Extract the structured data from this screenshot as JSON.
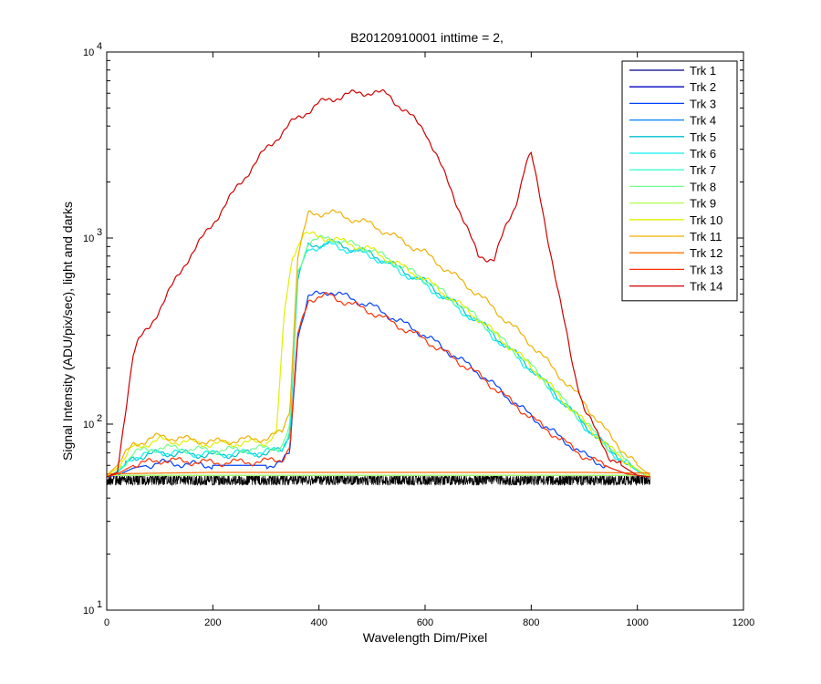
{
  "chart_data": {
    "type": "line",
    "title": "B20120910001 inttime = 2,",
    "xlabel": "Wavelength Dim/Pixel",
    "ylabel": "Signal Intensity (ADU/pix/sec), light and darks",
    "xlim": [
      0,
      1200
    ],
    "ylim": [
      10,
      10000
    ],
    "yscale": "log",
    "x_ticks": [
      "0",
      "200",
      "400",
      "600",
      "800",
      "1000",
      "1200"
    ],
    "y_ticks": [
      {
        "base": "10",
        "exp": "1"
      },
      {
        "base": "10",
        "exp": "2"
      },
      {
        "base": "10",
        "exp": "3"
      },
      {
        "base": "10",
        "exp": "4"
      }
    ],
    "grid": false,
    "legend_position": "top-right",
    "dark_band": {
      "x": [
        0,
        1024
      ],
      "y_low": 47,
      "y_high": 53,
      "color": "#000000"
    },
    "series": [
      {
        "name": "Trk 1",
        "color": "#00008f",
        "x": [
          0,
          200,
          400,
          600,
          800,
          1024
        ],
        "y": [
          53,
          53,
          53,
          53,
          53,
          53
        ]
      },
      {
        "name": "Trk 2",
        "color": "#0000bf",
        "x": [
          0,
          200,
          400,
          600,
          800,
          1024
        ],
        "y": [
          53,
          53,
          53,
          53,
          53,
          53
        ]
      },
      {
        "name": "Trk 3",
        "color": "#0040ff",
        "x": [
          0,
          20,
          50,
          100,
          200,
          300,
          330,
          345,
          360,
          380,
          420,
          500,
          600,
          700,
          800,
          900,
          950,
          980,
          1024
        ],
        "y": [
          52,
          53,
          58,
          62,
          60,
          60,
          62,
          70,
          300,
          480,
          520,
          430,
          300,
          190,
          110,
          68,
          58,
          54,
          52
        ]
      },
      {
        "name": "Trk 4",
        "color": "#0080ff",
        "x": [
          0,
          200,
          400,
          600,
          800,
          1024
        ],
        "y": [
          53,
          53,
          53,
          53,
          53,
          53
        ]
      },
      {
        "name": "Trk 5",
        "color": "#00c0d0",
        "x": [
          0,
          20,
          50,
          100,
          200,
          300,
          330,
          345,
          360,
          380,
          420,
          500,
          600,
          700,
          800,
          900,
          950,
          1000,
          1024
        ],
        "y": [
          52,
          55,
          66,
          70,
          68,
          70,
          72,
          90,
          600,
          900,
          950,
          820,
          580,
          360,
          200,
          100,
          72,
          56,
          52
        ]
      },
      {
        "name": "Trk 6",
        "color": "#10f0f0",
        "x": [
          0,
          20,
          50,
          100,
          200,
          300,
          330,
          345,
          360,
          380,
          420,
          500,
          600,
          700,
          800,
          900,
          950,
          1000,
          1024
        ],
        "y": [
          52,
          55,
          67,
          71,
          69,
          71,
          73,
          92,
          620,
          880,
          920,
          800,
          560,
          350,
          195,
          98,
          71,
          56,
          52
        ]
      },
      {
        "name": "Trk 7",
        "color": "#40ffd0",
        "x": [
          0,
          200,
          400,
          600,
          800,
          1024
        ],
        "y": [
          53,
          53,
          53,
          53,
          53,
          53
        ]
      },
      {
        "name": "Trk 8",
        "color": "#70ff90",
        "x": [
          0,
          20,
          50,
          100,
          200,
          300,
          330,
          345,
          360,
          380,
          420,
          500,
          600,
          700,
          800,
          900,
          950,
          1000,
          1024
        ],
        "y": [
          52,
          56,
          70,
          75,
          72,
          74,
          76,
          95,
          650,
          960,
          1000,
          860,
          600,
          370,
          205,
          102,
          73,
          57,
          52
        ]
      },
      {
        "name": "Trk 9",
        "color": "#b0ff50",
        "x": [
          0,
          200,
          400,
          600,
          800,
          1024
        ],
        "y": [
          53,
          53,
          53,
          53,
          53,
          53
        ]
      },
      {
        "name": "Trk 10",
        "color": "#e0f000",
        "x": [
          0,
          20,
          50,
          100,
          200,
          300,
          320,
          335,
          350,
          370,
          400,
          420,
          500,
          600,
          700,
          800,
          900,
          950,
          1000,
          1024
        ],
        "y": [
          53,
          58,
          75,
          82,
          78,
          80,
          90,
          400,
          800,
          1050,
          1020,
          1000,
          860,
          600,
          370,
          205,
          102,
          73,
          57,
          52
        ]
      },
      {
        "name": "Trk 11",
        "color": "#f0b000",
        "x": [
          0,
          20,
          50,
          100,
          200,
          300,
          330,
          345,
          360,
          380,
          420,
          500,
          600,
          700,
          800,
          900,
          950,
          1000,
          1024
        ],
        "y": [
          53,
          60,
          78,
          86,
          80,
          84,
          90,
          120,
          800,
          1340,
          1380,
          1180,
          830,
          500,
          270,
          130,
          85,
          60,
          53
        ]
      },
      {
        "name": "Trk 12",
        "color": "#ff7000",
        "x": [
          0,
          100,
          200,
          300,
          400,
          500,
          600,
          700,
          800,
          900,
          1024
        ],
        "y": [
          54,
          54.5,
          55,
          55,
          55,
          55,
          55,
          55,
          55,
          55,
          54.5
        ]
      },
      {
        "name": "Trk 13",
        "color": "#ff3000",
        "x": [
          0,
          20,
          50,
          100,
          200,
          300,
          330,
          345,
          360,
          380,
          420,
          500,
          600,
          700,
          800,
          900,
          950,
          980,
          1024
        ],
        "y": [
          52,
          54,
          60,
          64,
          62,
          63,
          65,
          75,
          300,
          470,
          490,
          400,
          285,
          185,
          108,
          67,
          58,
          54,
          52
        ]
      },
      {
        "name": "Trk 14",
        "color": "#d00000",
        "x": [
          0,
          20,
          40,
          50,
          60,
          80,
          100,
          150,
          200,
          250,
          300,
          350,
          400,
          450,
          500,
          530,
          600,
          650,
          700,
          730,
          750,
          770,
          790,
          800,
          820,
          850,
          880,
          900,
          950,
          1000,
          1024
        ],
        "y": [
          52,
          55,
          150,
          240,
          280,
          330,
          420,
          750,
          1200,
          1950,
          3000,
          4200,
          5300,
          5900,
          6100,
          5900,
          3800,
          1800,
          800,
          770,
          1100,
          1500,
          2500,
          2800,
          1500,
          520,
          200,
          120,
          65,
          53,
          52
        ]
      }
    ]
  }
}
